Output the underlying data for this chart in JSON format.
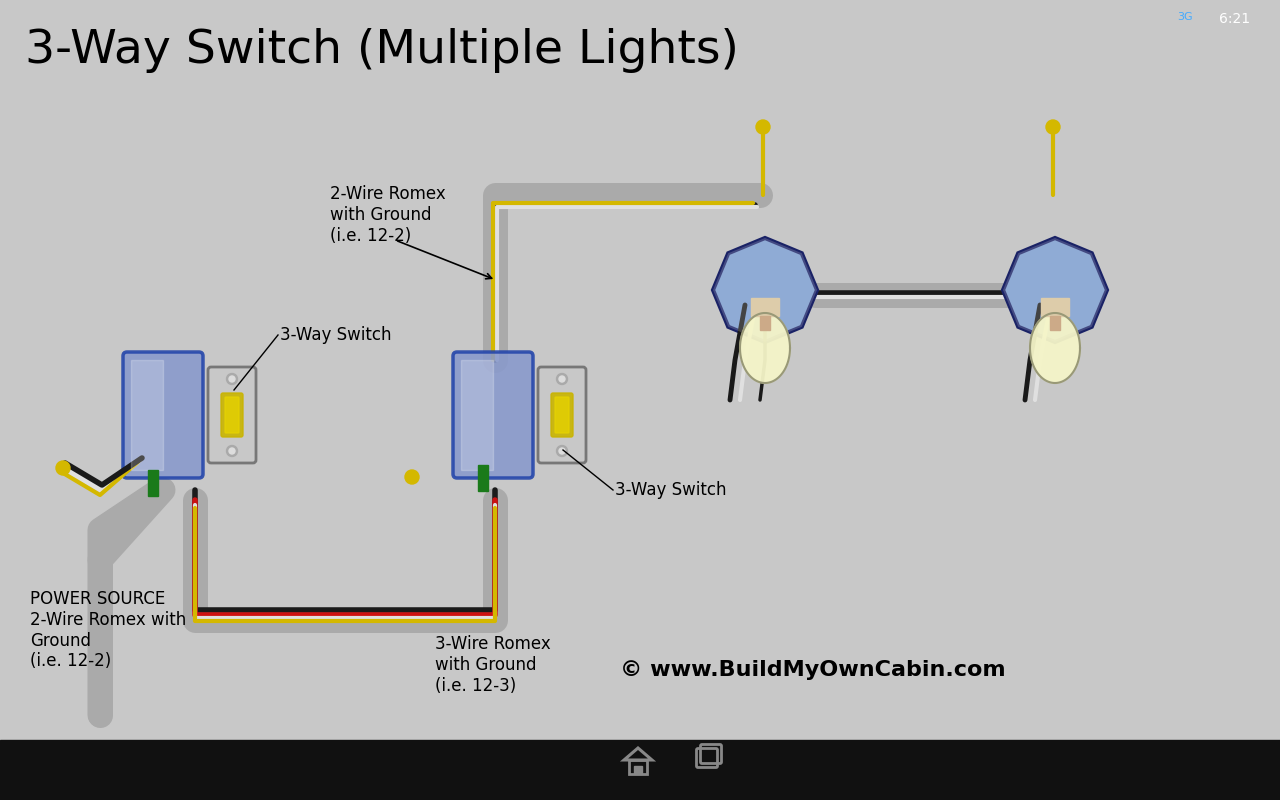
{
  "title": "3-Way Switch (Multiple Lights)",
  "title_fontsize": 34,
  "bg_color": "#c8c8c8",
  "navbar_color": "#111111",
  "wire_black": "#1a1a1a",
  "wire_white": "#e0e0e0",
  "wire_red": "#cc1111",
  "wire_yellow": "#d4b800",
  "wire_green": "#1a7a1a",
  "conduit_color": "#aaaaaa",
  "box_edge_color": "#2244aa",
  "box_face_color": "#8899cc",
  "switch_face": "#c8c8c8",
  "switch_border": "#777777",
  "hex_edge": "#1a2266",
  "hex_face_color": "#7799cc",
  "bulb_color": "#f5f5c8",
  "bulb_border": "#999977",
  "fixture_color": "#ddccaa",
  "label_fs": 12,
  "copyright_text": "© www.BuildMyOwnCabin.com",
  "label_power": "POWER SOURCE\n2-Wire Romex with\nGround\n(i.e. 12-2)",
  "label_2wire": "2-Wire Romex\nwith Ground\n(i.e. 12-2)",
  "label_3wire": "3-Wire Romex\nwith Ground\n(i.e. 12-3)",
  "label_sw1": "3-Way Switch",
  "label_sw2": "3-Way Switch"
}
